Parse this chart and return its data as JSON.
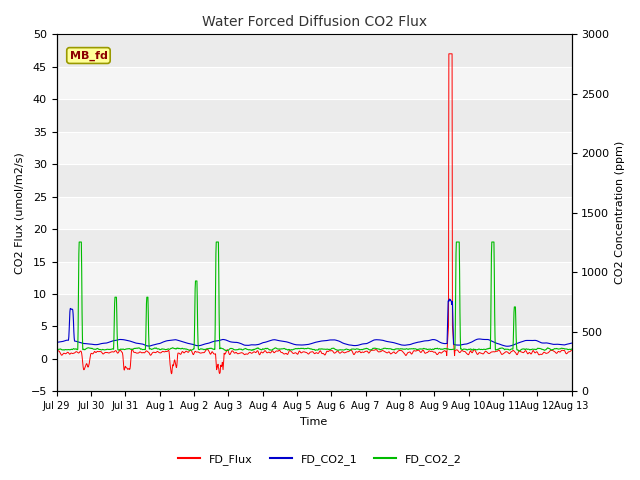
{
  "title": "Water Forced Diffusion CO2 Flux",
  "ylabel_left": "CO2 Flux (umol/m2/s)",
  "ylabel_right": "CO2 Concentration (ppm)",
  "xlabel": "Time",
  "ylim_left": [
    -5,
    50
  ],
  "ylim_right": [
    0,
    3000
  ],
  "x_tick_labels": [
    "Jul 29",
    "Jul 30",
    "Jul 31",
    "Aug 1",
    "Aug 2",
    "Aug 3",
    "Aug 4",
    "Aug 5",
    "Aug 6",
    "Aug 7",
    "Aug 8",
    "Aug 9",
    "Aug 10",
    "Aug 11",
    "Aug 12",
    "Aug 13"
  ],
  "figure_bg": "#ffffff",
  "plot_bg": "#f0f0f0",
  "grid_color": "#ffffff",
  "band_colors": [
    "#ebebeb",
    "#f5f5f5"
  ],
  "label_box_text": "MB_fd",
  "label_box_bg": "#ffff99",
  "label_box_edge": "#999900",
  "label_box_text_color": "#8B0000",
  "legend_entries": [
    "FD_Flux",
    "FD_CO2_1",
    "FD_CO2_2"
  ],
  "legend_colors": [
    "#ff0000",
    "#0000cc",
    "#00bb00"
  ],
  "num_points": 1440,
  "seed": 42
}
